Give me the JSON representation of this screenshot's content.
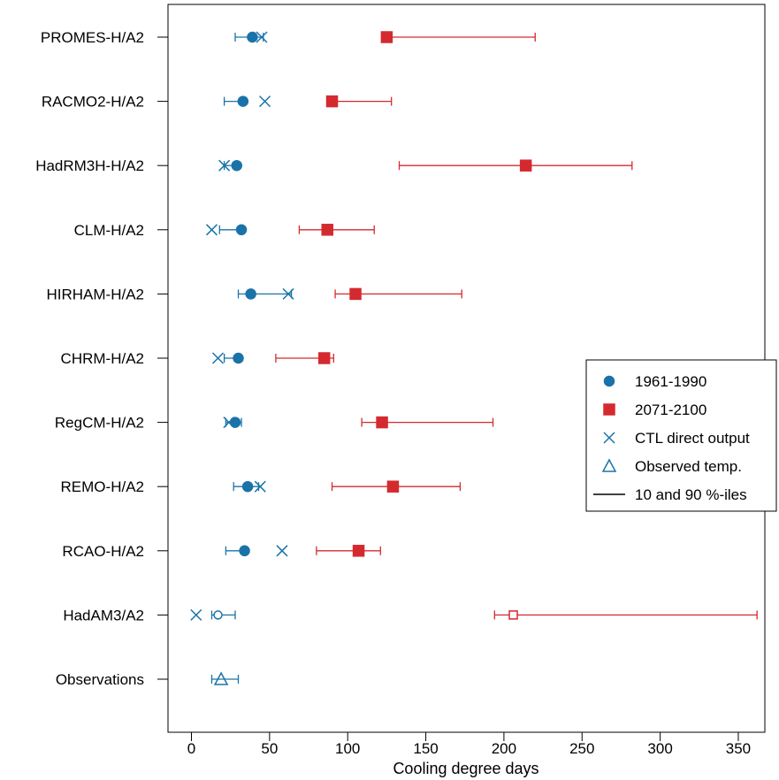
{
  "chart_data": {
    "type": "scatter",
    "title": "",
    "xlabel": "Cooling degree days",
    "ylabel": "",
    "xlim": [
      -15,
      367
    ],
    "x_ticks": [
      0,
      50,
      100,
      150,
      200,
      250,
      300,
      350
    ],
    "grid": false,
    "categories": [
      "PROMES-H/A2",
      "RACMO2-H/A2",
      "HadRM3H-H/A2",
      "CLM-H/A2",
      "HIRHAM-H/A2",
      "CHRM-H/A2",
      "RegCM-H/A2",
      "REMO-H/A2",
      "RCAO-H/A2",
      "HadAM3/A2",
      "Observations"
    ],
    "legend": {
      "position": "right",
      "entries": [
        {
          "label": "1961-1990",
          "marker": "filled-circle",
          "color": "#1a73a8"
        },
        {
          "label": "2071-2100",
          "marker": "filled-square",
          "color": "#d42a2f"
        },
        {
          "label": "CTL direct output",
          "marker": "cross",
          "color": "#1a73a8"
        },
        {
          "label": "Observed temp.",
          "marker": "open-triangle",
          "color": "#1a73a8"
        },
        {
          "label": "10 and 90 %-iles",
          "marker": "line",
          "color": "#000000"
        }
      ]
    },
    "series": [
      {
        "name": "1961-1990",
        "color": "#1a73a8",
        "marker": "filled-circle",
        "points": [
          {
            "category": "PROMES-H/A2",
            "value": 39,
            "p10": 28,
            "p90": 46
          },
          {
            "category": "RACMO2-H/A2",
            "value": 33,
            "p10": 21,
            "p90": 34
          },
          {
            "category": "HadRM3H-H/A2",
            "value": 29,
            "p10": 21,
            "p90": 29
          },
          {
            "category": "CLM-H/A2",
            "value": 32,
            "p10": 18,
            "p90": 33
          },
          {
            "category": "HIRHAM-H/A2",
            "value": 38,
            "p10": 30,
            "p90": 64
          },
          {
            "category": "CHRM-H/A2",
            "value": 30,
            "p10": 21,
            "p90": 30
          },
          {
            "category": "RegCM-H/A2",
            "value": 28,
            "p10": 22,
            "p90": 32
          },
          {
            "category": "REMO-H/A2",
            "value": 36,
            "p10": 27,
            "p90": 43
          },
          {
            "category": "RCAO-H/A2",
            "value": 34,
            "p10": 22,
            "p90": 35
          },
          {
            "category": "HadAM3/A2",
            "value": 17,
            "p10": 13,
            "p90": 28,
            "hollow": true
          }
        ]
      },
      {
        "name": "2071-2100",
        "color": "#d42a2f",
        "marker": "filled-square",
        "points": [
          {
            "category": "PROMES-H/A2",
            "value": 125,
            "p10": 125,
            "p90": 220
          },
          {
            "category": "RACMO2-H/A2",
            "value": 90,
            "p10": 90,
            "p90": 128
          },
          {
            "category": "HadRM3H-H/A2",
            "value": 214,
            "p10": 133,
            "p90": 282
          },
          {
            "category": "CLM-H/A2",
            "value": 87,
            "p10": 69,
            "p90": 117
          },
          {
            "category": "HIRHAM-H/A2",
            "value": 105,
            "p10": 92,
            "p90": 173
          },
          {
            "category": "CHRM-H/A2",
            "value": 85,
            "p10": 54,
            "p90": 91
          },
          {
            "category": "RegCM-H/A2",
            "value": 122,
            "p10": 109,
            "p90": 193
          },
          {
            "category": "REMO-H/A2",
            "value": 129,
            "p10": 90,
            "p90": 172
          },
          {
            "category": "RCAO-H/A2",
            "value": 107,
            "p10": 80,
            "p90": 121
          },
          {
            "category": "HadAM3/A2",
            "value": 206,
            "p10": 194,
            "p90": 362,
            "hollow": true
          }
        ]
      },
      {
        "name": "CTL direct output",
        "color": "#1a73a8",
        "marker": "cross",
        "points": [
          {
            "category": "PROMES-H/A2",
            "value": 45
          },
          {
            "category": "RACMO2-H/A2",
            "value": 47
          },
          {
            "category": "HadRM3H-H/A2",
            "value": 21
          },
          {
            "category": "CLM-H/A2",
            "value": 13
          },
          {
            "category": "HIRHAM-H/A2",
            "value": 62
          },
          {
            "category": "CHRM-H/A2",
            "value": 17
          },
          {
            "category": "RegCM-H/A2",
            "value": 24
          },
          {
            "category": "REMO-H/A2",
            "value": 44
          },
          {
            "category": "RCAO-H/A2",
            "value": 58
          },
          {
            "category": "HadAM3/A2",
            "value": 3
          }
        ]
      },
      {
        "name": "Observed temp.",
        "color": "#1a73a8",
        "marker": "open-triangle",
        "points": [
          {
            "category": "Observations",
            "value": 19,
            "p10": 13,
            "p90": 30
          }
        ]
      }
    ]
  }
}
